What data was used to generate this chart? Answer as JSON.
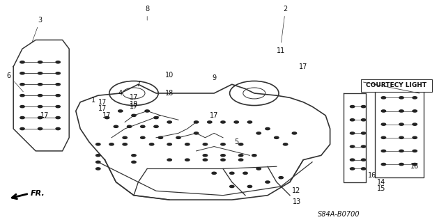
{
  "bg_color": "#ffffff",
  "diagram_code": "S84A-B0700",
  "courtesy_light_label": "COURTECY LIGHT",
  "fr_label": "FR.",
  "fig_width": 6.4,
  "fig_height": 3.19,
  "dpi": 100,
  "car_body_color": "#333333",
  "car_body_lw": 1.2,
  "text_color": "#111111",
  "small_fontsize": 7,
  "code_fontsize": 7
}
